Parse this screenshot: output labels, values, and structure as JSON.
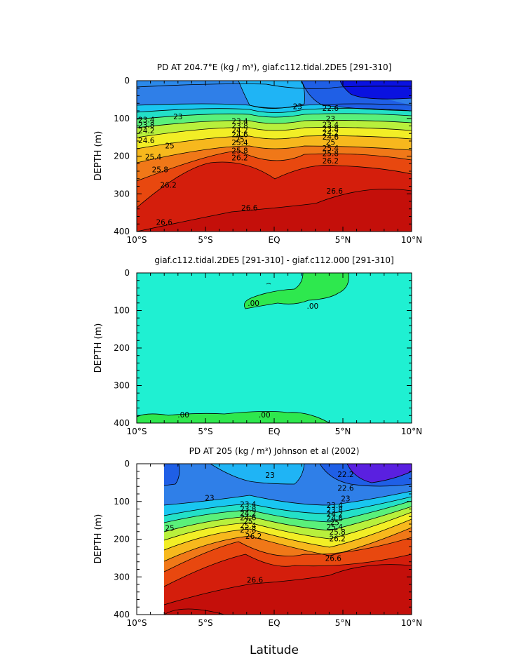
{
  "figure": {
    "xlabel": "Latitude"
  },
  "chart_data": [
    {
      "type": "contour",
      "title": "PD AT 204.7°E (kg / m³), giaf.c112.tidal.2DE5 [291-310]",
      "ylabel": "DEPTH (m)",
      "x_ticks": [
        "10°S",
        "5°S",
        "EQ",
        "5°N",
        "10°N"
      ],
      "y_ticks": [
        "0",
        "100",
        "200",
        "300",
        "400"
      ],
      "xlim": [
        -10,
        10
      ],
      "ylim": [
        400,
        0
      ],
      "contour_levels": [
        22.6,
        23,
        23.4,
        23.8,
        24.2,
        24.6,
        25,
        25.4,
        25.8,
        26.2,
        26.6
      ],
      "labels": [
        {
          "text": "23.4",
          "x": -9.3,
          "y": 103
        },
        {
          "text": "23.8",
          "x": -9.3,
          "y": 117
        },
        {
          "text": "24.2",
          "x": -9.3,
          "y": 132
        },
        {
          "text": "24.6",
          "x": -9.3,
          "y": 158
        },
        {
          "text": "25",
          "x": -7.6,
          "y": 172
        },
        {
          "text": "23",
          "x": -7.0,
          "y": 95
        },
        {
          "text": "25.4",
          "x": -8.8,
          "y": 202
        },
        {
          "text": "25.8",
          "x": -8.3,
          "y": 235
        },
        {
          "text": "26.2",
          "x": -7.7,
          "y": 276
        },
        {
          "text": "26.6",
          "x": -8.0,
          "y": 375
        },
        {
          "text": "23",
          "x": 1.7,
          "y": 68
        },
        {
          "text": "23.4",
          "x": -2.5,
          "y": 107
        },
        {
          "text": "23.8",
          "x": -2.5,
          "y": 119
        },
        {
          "text": "24.2",
          "x": -2.5,
          "y": 131
        },
        {
          "text": "24.6",
          "x": -2.5,
          "y": 142
        },
        {
          "text": "25",
          "x": -2.5,
          "y": 155
        },
        {
          "text": "25.4",
          "x": -2.5,
          "y": 164
        },
        {
          "text": "25.8",
          "x": -2.5,
          "y": 185
        },
        {
          "text": "26.2",
          "x": -2.5,
          "y": 204
        },
        {
          "text": "26.6",
          "x": -1.8,
          "y": 337
        },
        {
          "text": "22.6",
          "x": 4.1,
          "y": 73
        },
        {
          "text": "23",
          "x": 4.1,
          "y": 100
        },
        {
          "text": "23.4",
          "x": 4.1,
          "y": 116
        },
        {
          "text": "23.8",
          "x": 4.1,
          "y": 127
        },
        {
          "text": "24.2",
          "x": 4.1,
          "y": 138
        },
        {
          "text": "24.6",
          "x": 4.1,
          "y": 149
        },
        {
          "text": "25",
          "x": 4.1,
          "y": 163
        },
        {
          "text": "25.4",
          "x": 4.1,
          "y": 179
        },
        {
          "text": "25.8",
          "x": 4.1,
          "y": 193
        },
        {
          "text": "26.2",
          "x": 4.1,
          "y": 212
        },
        {
          "text": "26.6",
          "x": 4.4,
          "y": 292
        }
      ]
    },
    {
      "type": "contour",
      "title": "giaf.c112.tidal.2DE5 [291-310] - giaf.c112.000 [291-310]",
      "ylabel": "DEPTH (m)",
      "x_ticks": [
        "10°S",
        "5°S",
        "EQ",
        "5°N",
        "10°N"
      ],
      "y_ticks": [
        "0",
        "100",
        "200",
        "300",
        "400"
      ],
      "xlim": [
        -10,
        10
      ],
      "ylim": [
        400,
        0
      ],
      "contour_levels": [
        0
      ],
      "labels": [
        {
          "text": ".00",
          "x": -1.5,
          "y": 80
        },
        {
          "text": ".00",
          "x": 2.8,
          "y": 88
        },
        {
          "text": ".00",
          "x": -6.6,
          "y": 378
        },
        {
          "text": ".00",
          "x": -0.7,
          "y": 378
        }
      ]
    },
    {
      "type": "contour",
      "title": "PD AT 205 (kg / m³) Johnson et al (2002)",
      "ylabel": "DEPTH (m)",
      "x_ticks": [
        "10°S",
        "5°S",
        "EQ",
        "5°N",
        "10°N"
      ],
      "y_ticks": [
        "0",
        "100",
        "200",
        "300",
        "400"
      ],
      "xlim": [
        -10,
        10
      ],
      "ylim": [
        400,
        0
      ],
      "data_xrange": [
        -8,
        10
      ],
      "contour_levels": [
        22.2,
        22.6,
        23,
        23.4,
        23.8,
        24.2,
        24.6,
        25,
        25.4,
        25.8,
        26.2,
        26.6
      ],
      "labels": [
        {
          "text": "23",
          "x": -4.7,
          "y": 90
        },
        {
          "text": "25",
          "x": -7.6,
          "y": 170
        },
        {
          "text": "23",
          "x": -0.3,
          "y": 30
        },
        {
          "text": "23.4",
          "x": -1.9,
          "y": 107
        },
        {
          "text": "23.8",
          "x": -1.9,
          "y": 120
        },
        {
          "text": "24.2",
          "x": -1.9,
          "y": 131
        },
        {
          "text": "24.6",
          "x": -1.9,
          "y": 142
        },
        {
          "text": "25",
          "x": -1.9,
          "y": 153
        },
        {
          "text": "25.4",
          "x": -1.9,
          "y": 164
        },
        {
          "text": "25.8",
          "x": -1.9,
          "y": 175
        },
        {
          "text": "26.2",
          "x": -1.5,
          "y": 192
        },
        {
          "text": "26.6",
          "x": -1.4,
          "y": 308
        },
        {
          "text": "22.2",
          "x": 5.2,
          "y": 28
        },
        {
          "text": "22.6",
          "x": 5.2,
          "y": 64
        },
        {
          "text": "23",
          "x": 5.2,
          "y": 92
        },
        {
          "text": "23.4",
          "x": 4.4,
          "y": 110
        },
        {
          "text": "23.8",
          "x": 4.4,
          "y": 122
        },
        {
          "text": "24.2",
          "x": 4.4,
          "y": 133
        },
        {
          "text": "24.6",
          "x": 4.4,
          "y": 144
        },
        {
          "text": "25",
          "x": 4.4,
          "y": 155
        },
        {
          "text": "25.4",
          "x": 4.4,
          "y": 167
        },
        {
          "text": "25.8",
          "x": 4.6,
          "y": 180
        },
        {
          "text": "26.2",
          "x": 4.6,
          "y": 198
        },
        {
          "text": "26.6",
          "x": 4.3,
          "y": 250
        }
      ]
    }
  ]
}
